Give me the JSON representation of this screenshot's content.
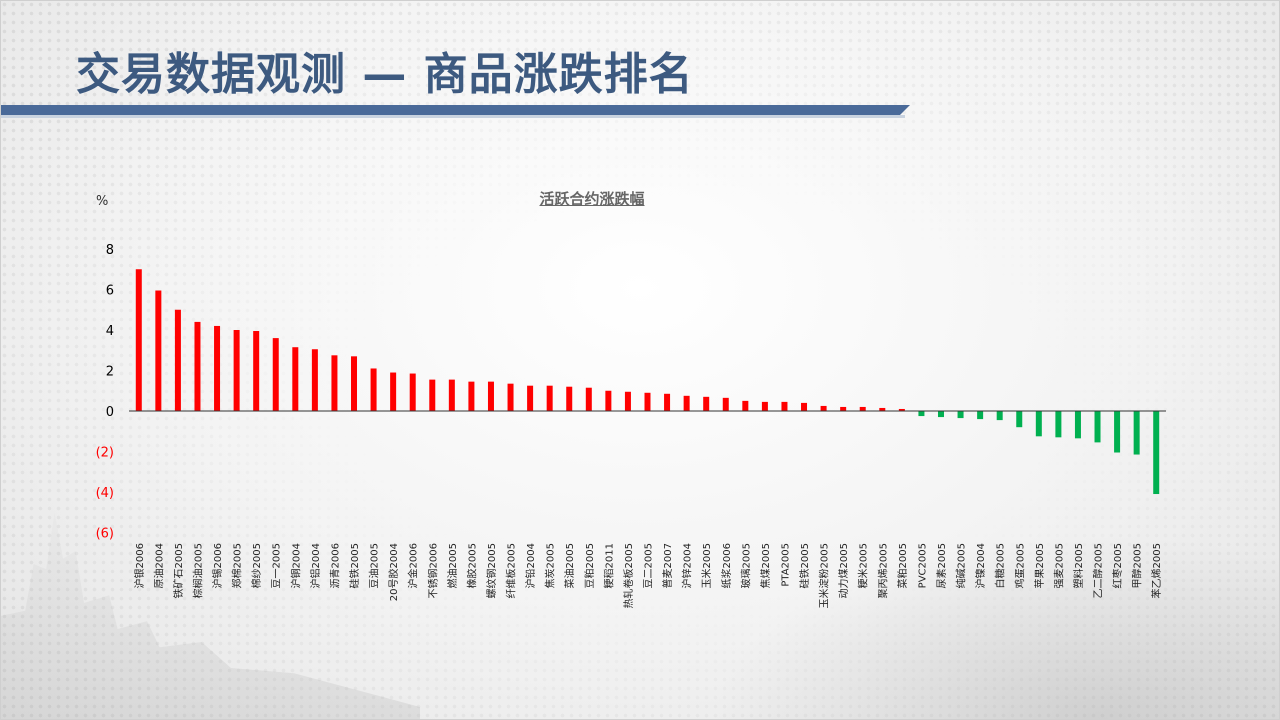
{
  "page": {
    "title": "交易数据观测 — 商品涨跌排名"
  },
  "colors": {
    "title": "#3d5a80",
    "bar_positive": "#ff0000",
    "bar_negative": "#00b050",
    "negative_tick": "#ff0000",
    "axis_tick": "#000000"
  },
  "chart_data": {
    "type": "bar",
    "title": "活跃合约涨跌幅",
    "ylabel": "%",
    "xlabel": "",
    "ylim": [
      -6,
      8
    ],
    "yticks": [
      8,
      6,
      4,
      2,
      0,
      -2,
      -4,
      -6
    ],
    "ytick_labels": [
      "8",
      "6",
      "4",
      "2",
      "0",
      "(2)",
      "(4)",
      "(6)"
    ],
    "grid": false,
    "categories": [
      "沪银2006",
      "原油2004",
      "铁矿石2005",
      "棕榈油2005",
      "沪锡2006",
      "郑棉2005",
      "棉纱2005",
      "豆一2005",
      "沪铜2004",
      "沪铝2004",
      "沥青2006",
      "硅铁2005",
      "豆油2005",
      "20号胶2004",
      "沪金2006",
      "不锈钢2006",
      "燃油2005",
      "橡胶2005",
      "螺纹钢2005",
      "纤维板2005",
      "沪铅2004",
      "焦炭2005",
      "菜油2005",
      "豆粕2005",
      "粳稻2011",
      "热轧卷板2005",
      "豆二2005",
      "普麦2007",
      "沪锌2004",
      "玉米2005",
      "纸浆2006",
      "玻璃2005",
      "焦煤2005",
      "PTA2005",
      "硅铁2005",
      "玉米淀粉2005",
      "动力煤2005",
      "粳米2005",
      "聚丙烯2005",
      "菜粕2005",
      "PVC2005",
      "尿素2005",
      "纯碱2005",
      "沪镍2004",
      "白糖2005",
      "鸡蛋2005",
      "苹果2005",
      "强麦2005",
      "塑料2005",
      "乙二醇2005",
      "红枣2005",
      "甲醇2005",
      "苯乙烯2005"
    ],
    "values": [
      7.0,
      5.95,
      5.0,
      4.4,
      4.2,
      4.0,
      3.95,
      3.6,
      3.15,
      3.05,
      2.75,
      2.7,
      2.1,
      1.9,
      1.85,
      1.55,
      1.55,
      1.45,
      1.45,
      1.35,
      1.25,
      1.25,
      1.2,
      1.15,
      1.0,
      0.95,
      0.9,
      0.85,
      0.75,
      0.7,
      0.65,
      0.5,
      0.45,
      0.45,
      0.4,
      0.25,
      0.2,
      0.2,
      0.15,
      0.1,
      -0.25,
      -0.3,
      -0.35,
      -0.4,
      -0.45,
      -0.8,
      -1.25,
      -1.3,
      -1.35,
      -1.55,
      -2.05,
      -2.15,
      -4.1
    ]
  }
}
